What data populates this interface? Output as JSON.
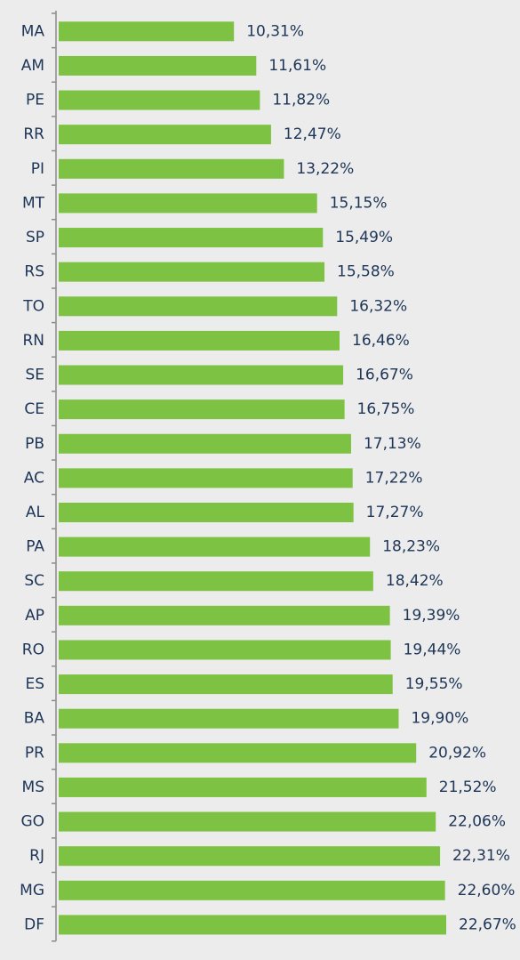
{
  "chart_data": {
    "type": "barh",
    "categories": [
      "MA",
      "AM",
      "PE",
      "RR",
      "PI",
      "MT",
      "SP",
      "RS",
      "TO",
      "RN",
      "SE",
      "CE",
      "PB",
      "AC",
      "AL",
      "PA",
      "SC",
      "AP",
      "RO",
      "ES",
      "BA",
      "PR",
      "MS",
      "GO",
      "RJ",
      "MG",
      "DF"
    ],
    "values": [
      10.31,
      11.61,
      11.82,
      12.47,
      13.22,
      15.15,
      15.49,
      15.58,
      16.32,
      16.46,
      16.67,
      16.75,
      17.13,
      17.22,
      17.27,
      18.23,
      18.42,
      19.39,
      19.44,
      19.55,
      19.9,
      20.92,
      21.52,
      22.06,
      22.31,
      22.6,
      22.67
    ],
    "value_labels": [
      "10,31%",
      "11,61%",
      "11,82%",
      "12,47%",
      "13,22%",
      "15,15%",
      "15,49%",
      "15,58%",
      "16,32%",
      "16,46%",
      "16,67%",
      "16,75%",
      "17,13%",
      "17,22%",
      "17,27%",
      "18,23%",
      "18,42%",
      "19,39%",
      "19,44%",
      "19,55%",
      "19,90%",
      "20,92%",
      "21,52%",
      "22,06%",
      "22,31%",
      "22,60%",
      "22,67%"
    ],
    "color": "#7dc242"
  }
}
